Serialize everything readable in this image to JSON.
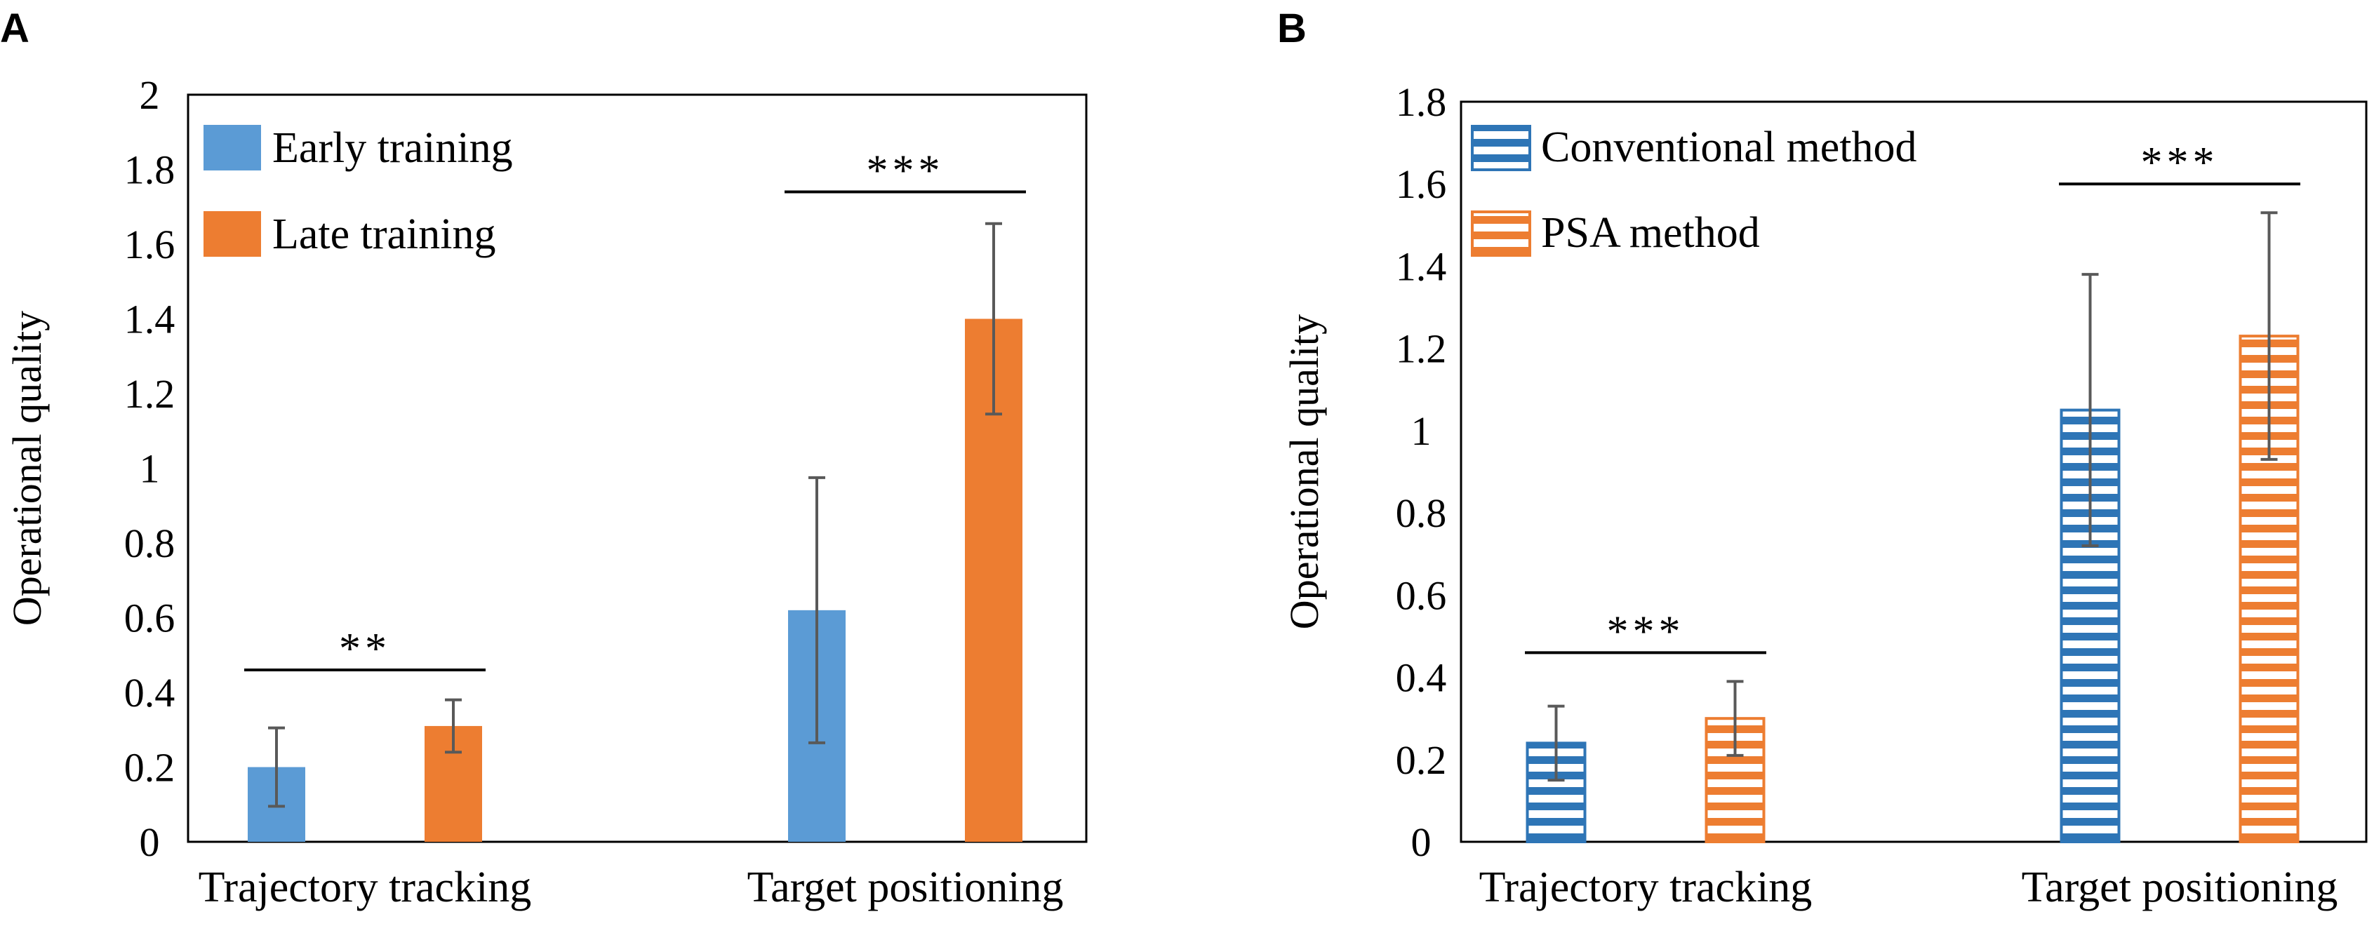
{
  "colors": {
    "blue": "#5B9BD5",
    "orange": "#ED7D31",
    "blue_stripe": "#2E75B6",
    "orange_stripe": "#ED7D31",
    "error_bar": "#595959",
    "frame": "#000000"
  },
  "chart_data": [
    {
      "panel_label": "A",
      "type": "bar",
      "ylabel": "Operational quality",
      "xlabel": "",
      "ylim": [
        0,
        2
      ],
      "y_ticks": [
        0,
        0.2,
        0.4,
        0.6,
        0.8,
        1,
        1.2,
        1.4,
        1.6,
        1.8,
        2
      ],
      "y_tick_labels": [
        "0",
        "0.2",
        "0.4",
        "0.6",
        "0.8",
        "1",
        "1.2",
        "1.4",
        "1.6",
        "1.8",
        "2"
      ],
      "categories": [
        "Trajectory tracking",
        "Target positioning"
      ],
      "pattern": "solid",
      "legend_position": "top-left",
      "series": [
        {
          "name": "Early training",
          "color_key": "blue",
          "values": [
            0.2,
            0.62
          ],
          "errors": [
            0.105,
            0.355
          ]
        },
        {
          "name": "Late training",
          "color_key": "orange",
          "values": [
            0.31,
            1.4
          ],
          "errors": [
            0.07,
            0.255
          ]
        }
      ],
      "significance": [
        {
          "category_index": 0,
          "label": "**",
          "y": 0.46
        },
        {
          "category_index": 1,
          "label": "***",
          "y": 1.74
        }
      ]
    },
    {
      "panel_label": "B",
      "type": "bar",
      "ylabel": "Operational quality",
      "xlabel": "",
      "ylim": [
        0,
        1.8
      ],
      "y_ticks": [
        0,
        0.2,
        0.4,
        0.6,
        0.8,
        1,
        1.2,
        1.4,
        1.6,
        1.8
      ],
      "y_tick_labels": [
        "0",
        "0.2",
        "0.4",
        "0.6",
        "0.8",
        "1",
        "1.2",
        "1.4",
        "1.6",
        "1.8"
      ],
      "categories": [
        "Trajectory tracking",
        "Target positioning"
      ],
      "pattern": "horizontal-stripes",
      "legend_position": "top-left",
      "series": [
        {
          "name": "Conventional method",
          "color_key": "blue_stripe",
          "values": [
            0.24,
            1.05
          ],
          "errors": [
            0.09,
            0.33
          ]
        },
        {
          "name": "PSA method",
          "color_key": "orange_stripe",
          "values": [
            0.3,
            1.23
          ],
          "errors": [
            0.09,
            0.3
          ]
        }
      ],
      "significance": [
        {
          "category_index": 0,
          "label": "***",
          "y": 0.46
        },
        {
          "category_index": 1,
          "label": "***",
          "y": 1.6
        }
      ]
    }
  ]
}
